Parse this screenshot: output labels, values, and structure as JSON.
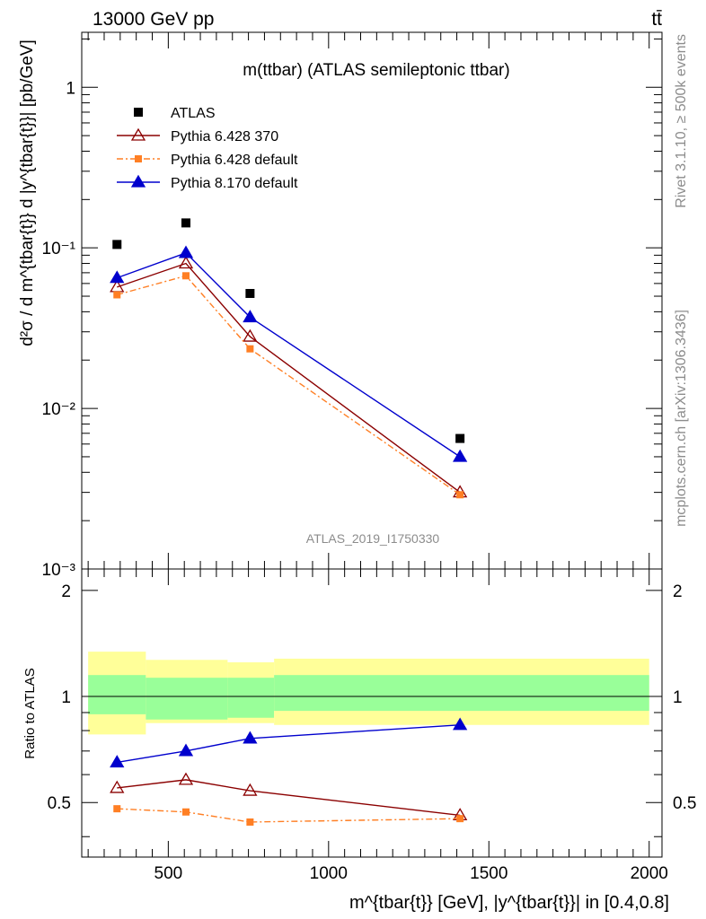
{
  "header": {
    "left": "13000 GeV pp",
    "right": "tt̄"
  },
  "side_labels": {
    "rivet": "Rivet 3.1.10, ≥ 500k events",
    "mcplots": "mcplots.cern.ch [arXiv:1306.3436]"
  },
  "colors": {
    "atlas": "#000000",
    "py6_370": "#8b0000",
    "py6_default": "#ff7f24",
    "py8": "#0000cd",
    "band_inner": "#99ff99",
    "band_outer": "#ffff99"
  },
  "chart_data": [
    {
      "type": "scatter",
      "panel": "main",
      "title": "m(ttbar) (ATLAS semileptonic ttbar)",
      "watermark": "ATLAS_2019_I1750330",
      "ylabel": "d²σ / d m^{tbar{t}} d |y^{tbar{t}}| [pb/GeV]",
      "yscale": "log",
      "ylim": [
        0.001,
        2.2
      ],
      "xlim": [
        230,
        2040
      ],
      "ytick_labels": [
        "10⁻³",
        "10⁻²",
        "10⁻¹",
        "1"
      ],
      "legend_position": "top-left",
      "x": [
        340,
        555,
        755,
        1410
      ],
      "bins": [
        [
          250,
          430
        ],
        [
          430,
          685
        ],
        [
          685,
          830
        ],
        [
          830,
          2000
        ]
      ],
      "series": [
        {
          "name": "ATLAS",
          "marker": "square",
          "line": "none",
          "values": [
            0.105,
            0.143,
            0.052,
            0.0065
          ]
        },
        {
          "name": "Pythia 6.428 370",
          "marker": "triangle-open",
          "line": "solid",
          "values": [
            0.057,
            0.08,
            0.028,
            0.003
          ]
        },
        {
          "name": "Pythia 6.428 default",
          "marker": "square-small",
          "line": "dashdot",
          "values": [
            0.051,
            0.067,
            0.0235,
            0.0029
          ]
        },
        {
          "name": "Pythia 8.170 default",
          "marker": "triangle-filled",
          "line": "solid",
          "values": [
            0.065,
            0.093,
            0.037,
            0.005
          ]
        }
      ]
    },
    {
      "type": "line",
      "panel": "ratio",
      "ylabel": "Ratio to ATLAS",
      "xlabel": "m^{tbar{t}} [GeV], |y^{tbar{t}}| in [0.4,0.8]",
      "ylim": [
        0.35,
        2.3
      ],
      "xlim": [
        230,
        2040
      ],
      "ytick_labels": [
        "0.5",
        "1",
        "2"
      ],
      "xtick_labels": [
        "500",
        "1000",
        "1500",
        "2000"
      ],
      "reference": 1.0,
      "band_inner": [
        [
          0.89,
          1.15
        ],
        [
          0.86,
          1.13
        ],
        [
          0.87,
          1.13
        ],
        [
          0.91,
          1.15
        ]
      ],
      "band_outer": [
        [
          0.78,
          1.34
        ],
        [
          0.84,
          1.27
        ],
        [
          0.84,
          1.25
        ],
        [
          0.83,
          1.28
        ]
      ],
      "x": [
        340,
        555,
        755,
        1410
      ],
      "series": [
        {
          "name": "Pythia 6.428 370",
          "values": [
            0.55,
            0.58,
            0.54,
            0.46
          ]
        },
        {
          "name": "Pythia 6.428 default",
          "values": [
            0.48,
            0.47,
            0.44,
            0.45
          ]
        },
        {
          "name": "Pythia 8.170 default",
          "values": [
            0.65,
            0.7,
            0.76,
            0.83
          ]
        }
      ]
    }
  ]
}
